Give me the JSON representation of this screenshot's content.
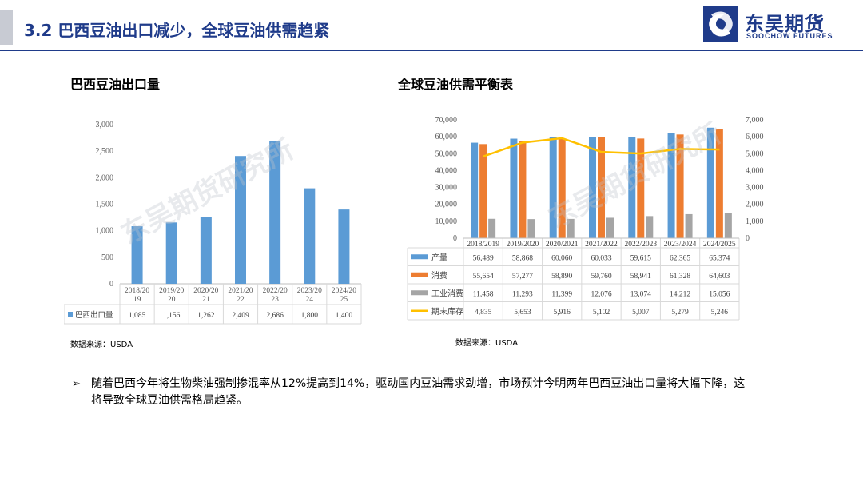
{
  "header": {
    "title": "3.2  巴西豆油出口减少，全球豆油供需趋紧",
    "logo_cn": "东吴期货",
    "logo_en": "SOOCHOW FUTURES",
    "logo_icon": "soochow-logo-icon",
    "accent_color": "#1f3b8a"
  },
  "watermark": "东吴期货研究所",
  "chart_data": [
    {
      "type": "bar",
      "title": "巴西豆油出口量",
      "categories": [
        "2018/2019",
        "2019/2020",
        "2020/2021",
        "2021/2022",
        "2022/2023",
        "2023/2024",
        "2024/2025"
      ],
      "category_lines": [
        [
          "2018/20",
          "19"
        ],
        [
          "2019/20",
          "20"
        ],
        [
          "2020/20",
          "21"
        ],
        [
          "2021/20",
          "22"
        ],
        [
          "2022/20",
          "23"
        ],
        [
          "2023/20",
          "24"
        ],
        [
          "2024/20",
          "25"
        ]
      ],
      "series": [
        {
          "name": "巴西出口量",
          "values": [
            1085,
            1156,
            1262,
            2409,
            2686,
            1800,
            1400
          ],
          "color": "#5b9bd5"
        }
      ],
      "values_text": [
        "1,085",
        "1,156",
        "1,262",
        "2,409",
        "2,686",
        "1,800",
        "1,400"
      ],
      "ylim": [
        0,
        3000
      ],
      "yticks": [
        "0",
        "500",
        "1,000",
        "1,500",
        "2,000",
        "2,500",
        "3,000"
      ],
      "grid": false,
      "data_table": true,
      "source": "数据来源：USDA"
    },
    {
      "type": "bar",
      "title": "全球豆油供需平衡表",
      "categories": [
        "2018/2019",
        "2019/2020",
        "2020/2021",
        "2021/2022",
        "2022/2023",
        "2023/2024",
        "2024/2025"
      ],
      "series": [
        {
          "name": "产量",
          "type": "bar",
          "axis": "left",
          "color": "#5b9bd5",
          "values": [
            56489,
            58868,
            60060,
            60033,
            59615,
            62365,
            65374
          ],
          "values_text": [
            "56,489",
            "58,868",
            "60,060",
            "60,033",
            "59,615",
            "62,365",
            "65,374"
          ]
        },
        {
          "name": "消费",
          "type": "bar",
          "axis": "left",
          "color": "#ed7d31",
          "values": [
            55654,
            57277,
            58890,
            59760,
            58941,
            61328,
            64603
          ],
          "values_text": [
            "55,654",
            "57,277",
            "58,890",
            "59,760",
            "58,941",
            "61,328",
            "64,603"
          ]
        },
        {
          "name": "工业消费",
          "type": "bar",
          "axis": "left",
          "color": "#a5a5a5",
          "values": [
            11458,
            11293,
            11399,
            12076,
            13074,
            14212,
            15056
          ],
          "values_text": [
            "11,458",
            "11,293",
            "11,399",
            "12,076",
            "13,074",
            "14,212",
            "15,056"
          ]
        },
        {
          "name": "期末库存",
          "type": "line",
          "axis": "right",
          "color": "#ffc000",
          "values": [
            4835,
            5653,
            5916,
            5102,
            5007,
            5279,
            5246
          ],
          "values_text": [
            "4,835",
            "5,653",
            "5,916",
            "5,102",
            "5,007",
            "5,279",
            "5,246"
          ]
        }
      ],
      "ylim": [
        0,
        70000
      ],
      "yticks": [
        "0",
        "10,000",
        "20,000",
        "30,000",
        "40,000",
        "50,000",
        "60,000",
        "70,000"
      ],
      "y2lim": [
        0,
        7000
      ],
      "y2ticks": [
        "0",
        "1,000",
        "2,000",
        "3,000",
        "4,000",
        "5,000",
        "6,000",
        "7,000"
      ],
      "grid": false,
      "data_table": true,
      "source": "数据来源：USDA"
    }
  ],
  "body": {
    "bullet_mark": "➢",
    "text": "随着巴西今年将生物柴油强制掺混率从12%提高到14%，驱动国内豆油需求劲增，市场预计今明两年巴西豆油出口量将大幅下降，这将导致全球豆油供需格局趋紧。"
  }
}
